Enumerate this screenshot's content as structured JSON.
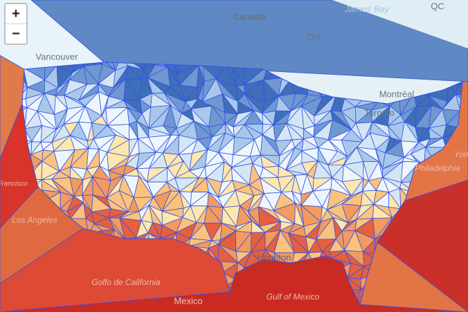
{
  "controls": {
    "zoom_in": "+",
    "zoom_out": "−"
  },
  "labels": {
    "canada": "Canada",
    "james_bay": "James Bay",
    "qc": "QC",
    "on": "ON",
    "vancouver": "Vancouver",
    "montreal": "Montréal",
    "toronto": "Toronto",
    "new_york": "York",
    "philadelphia": "Philadelphia",
    "san_francisco": "Francisco",
    "los_angeles": "Los Angeles",
    "golfo": "Golfo de California",
    "mexico": "Mexico",
    "gulf": "Gulf of Mexico",
    "houston": "Houston"
  }
}
